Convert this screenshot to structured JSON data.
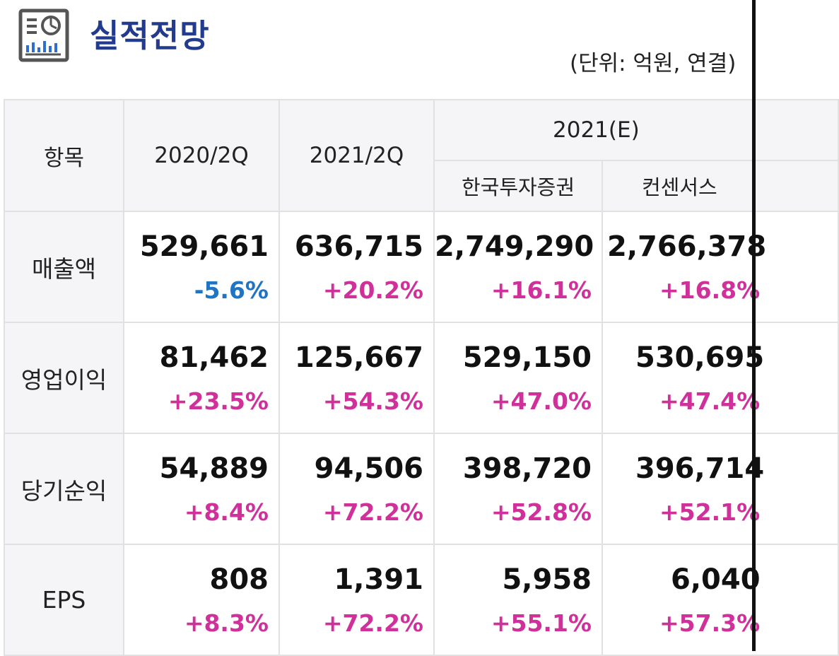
{
  "header": {
    "title": "실적전망",
    "unit_note": "(단위: 억원, 연결)",
    "icon": "report-chart-icon"
  },
  "colors": {
    "title": "#233b8e",
    "increase": "#d0309a",
    "decrease": "#1f74c4",
    "header_bg": "#f5f5f7",
    "border": "#e1e1e1"
  },
  "table": {
    "col_item": "항목",
    "col_2020q2": "2020/2Q",
    "col_2021q2": "2021/2Q",
    "col_2021e": "2021(E)",
    "col_kis": "한국투자증권",
    "col_consensus": "컨센서스",
    "rows": [
      {
        "label": "매출액",
        "c1": {
          "value": "529,661",
          "change": "-5.6%"
        },
        "c2": {
          "value": "636,715",
          "change": "+20.2%"
        },
        "c3": {
          "value": "2,749,290",
          "change": "+16.1%"
        },
        "c4": {
          "value": "2,766,378",
          "change": "+16.8%"
        }
      },
      {
        "label": "영업이익",
        "c1": {
          "value": "81,462",
          "change": "+23.5%"
        },
        "c2": {
          "value": "125,667",
          "change": "+54.3%"
        },
        "c3": {
          "value": "529,150",
          "change": "+47.0%"
        },
        "c4": {
          "value": "530,695",
          "change": "+47.4%"
        }
      },
      {
        "label": "당기순익",
        "c1": {
          "value": "54,889",
          "change": "+8.4%"
        },
        "c2": {
          "value": "94,506",
          "change": "+72.2%"
        },
        "c3": {
          "value": "398,720",
          "change": "+52.8%"
        },
        "c4": {
          "value": "396,714",
          "change": "+52.1%"
        }
      },
      {
        "label": "EPS",
        "c1": {
          "value": "808",
          "change": "+8.3%"
        },
        "c2": {
          "value": "1,391",
          "change": "+72.2%"
        },
        "c3": {
          "value": "5,958",
          "change": "+55.1%"
        },
        "c4": {
          "value": "6,040",
          "change": "+57.3%"
        }
      }
    ]
  }
}
